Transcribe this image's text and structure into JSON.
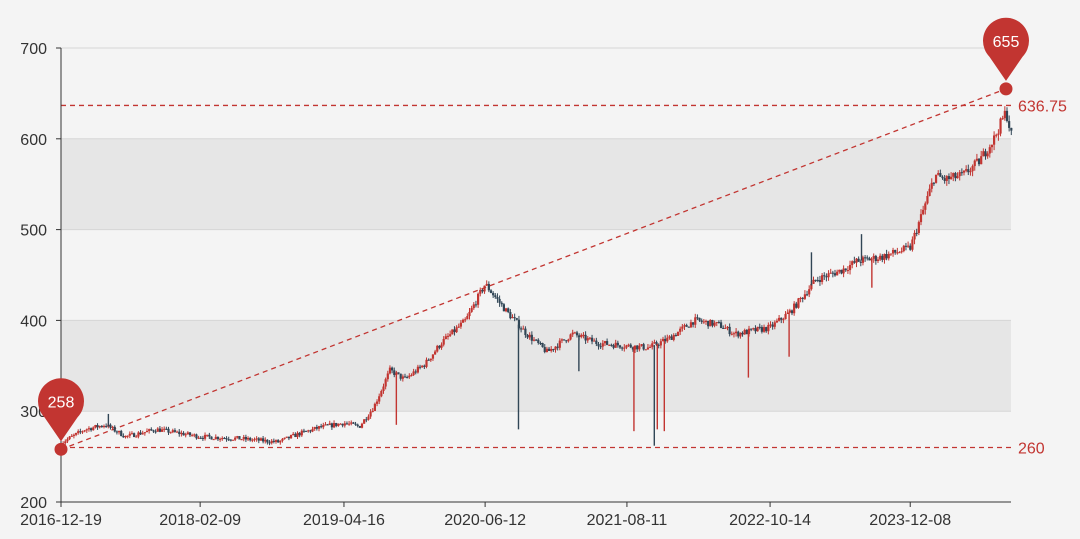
{
  "chart_data": {
    "type": "candlestick",
    "ylim": [
      200,
      700
    ],
    "y_ticks": [
      "200",
      "300",
      "400",
      "500",
      "600",
      "700"
    ],
    "x_ticks": [
      "2016-12-19",
      "2018-02-09",
      "2019-04-16",
      "2020-06-12",
      "2021-08-11",
      "2022-10-14",
      "2023-12-08"
    ],
    "grid": "horizontal bands",
    "colors": {
      "up": "#c23531",
      "down": "#314656",
      "band": "#e6e6e6",
      "background": "#f4f4f4",
      "axis": "#333333"
    },
    "markpoints": [
      {
        "label": "258",
        "date": "2016-12-19",
        "value": 258
      },
      {
        "label": "655",
        "date": "2024-09-20",
        "value": 655
      }
    ],
    "marklines": [
      {
        "label": "636.75",
        "value": 636.75
      },
      {
        "label": "260",
        "value": 260
      }
    ],
    "trend_line": {
      "from": {
        "date": "2016-12-19",
        "value": 258
      },
      "to": {
        "date": "2024-09-20",
        "value": 655
      }
    },
    "path": [
      [
        "2016-12-19",
        265
      ],
      [
        "2017-03-01",
        280
      ],
      [
        "2017-05-01",
        285
      ],
      [
        "2017-07-01",
        272
      ],
      [
        "2017-10-01",
        280
      ],
      [
        "2018-02-09",
        272
      ],
      [
        "2018-06-01",
        270
      ],
      [
        "2018-10-01",
        266
      ],
      [
        "2018-12-01",
        275
      ],
      [
        "2019-02-01",
        282
      ],
      [
        "2019-04-16",
        287
      ],
      [
        "2019-06-01",
        283
      ],
      [
        "2019-07-15",
        305
      ],
      [
        "2019-09-01",
        345
      ],
      [
        "2019-10-15",
        335
      ],
      [
        "2019-12-15",
        352
      ],
      [
        "2020-02-01",
        375
      ],
      [
        "2020-04-15",
        400
      ],
      [
        "2020-06-12",
        440
      ],
      [
        "2020-08-15",
        410
      ],
      [
        "2020-10-15",
        385
      ],
      [
        "2020-12-15",
        365
      ],
      [
        "2021-03-01",
        385
      ],
      [
        "2021-05-15",
        375
      ],
      [
        "2021-08-11",
        372
      ],
      [
        "2021-10-15",
        370
      ],
      [
        "2021-12-15",
        380
      ],
      [
        "2022-03-01",
        400
      ],
      [
        "2022-05-15",
        395
      ],
      [
        "2022-07-01",
        385
      ],
      [
        "2022-10-14",
        392
      ],
      [
        "2022-12-15",
        410
      ],
      [
        "2023-03-01",
        445
      ],
      [
        "2023-05-15",
        455
      ],
      [
        "2023-07-01",
        465
      ],
      [
        "2023-09-15",
        470
      ],
      [
        "2023-12-08",
        480
      ],
      [
        "2024-01-15",
        520
      ],
      [
        "2024-02-20",
        560
      ],
      [
        "2024-03-20",
        555
      ],
      [
        "2024-05-15",
        560
      ],
      [
        "2024-07-01",
        575
      ],
      [
        "2024-08-15",
        600
      ],
      [
        "2024-09-20",
        630
      ],
      [
        "2024-10-10",
        598
      ]
    ],
    "spikes": [
      {
        "date": "2017-05-10",
        "value": 297,
        "dir": "down"
      },
      {
        "date": "2019-09-20",
        "value": 285,
        "dir": "up"
      },
      {
        "date": "2020-09-20",
        "value": 280,
        "dir": "down"
      },
      {
        "date": "2021-03-20",
        "value": 344,
        "dir": "down"
      },
      {
        "date": "2021-09-01",
        "value": 278,
        "dir": "up"
      },
      {
        "date": "2021-11-01",
        "value": 262,
        "dir": "down"
      },
      {
        "date": "2021-11-10",
        "value": 280,
        "dir": "up"
      },
      {
        "date": "2021-12-01",
        "value": 278,
        "dir": "up"
      },
      {
        "date": "2022-08-10",
        "value": 337,
        "dir": "up"
      },
      {
        "date": "2022-12-10",
        "value": 360,
        "dir": "up"
      },
      {
        "date": "2023-02-15",
        "value": 475,
        "dir": "down"
      },
      {
        "date": "2023-07-15",
        "value": 495,
        "dir": "down"
      },
      {
        "date": "2023-08-15",
        "value": 436,
        "dir": "up"
      }
    ]
  }
}
